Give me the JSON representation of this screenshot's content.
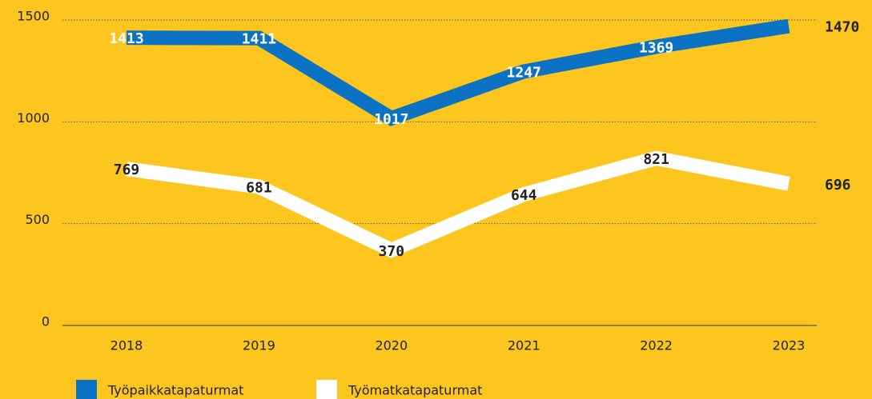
{
  "chart_data": {
    "type": "line",
    "categories": [
      "2018",
      "2019",
      "2020",
      "2021",
      "2022",
      "2023"
    ],
    "series": [
      {
        "name": "Työpaikkatapaturmat",
        "color": "#0b72c4",
        "values": [
          1413,
          1411,
          1017,
          1247,
          1369,
          1470
        ]
      },
      {
        "name": "Työmatkatapaturmat",
        "color": "#ffffff",
        "values": [
          769,
          681,
          370,
          644,
          821,
          696
        ]
      }
    ],
    "ylim": [
      0,
      1500
    ],
    "yticks": [
      0,
      500,
      1000,
      1500
    ],
    "grid": true
  }
}
